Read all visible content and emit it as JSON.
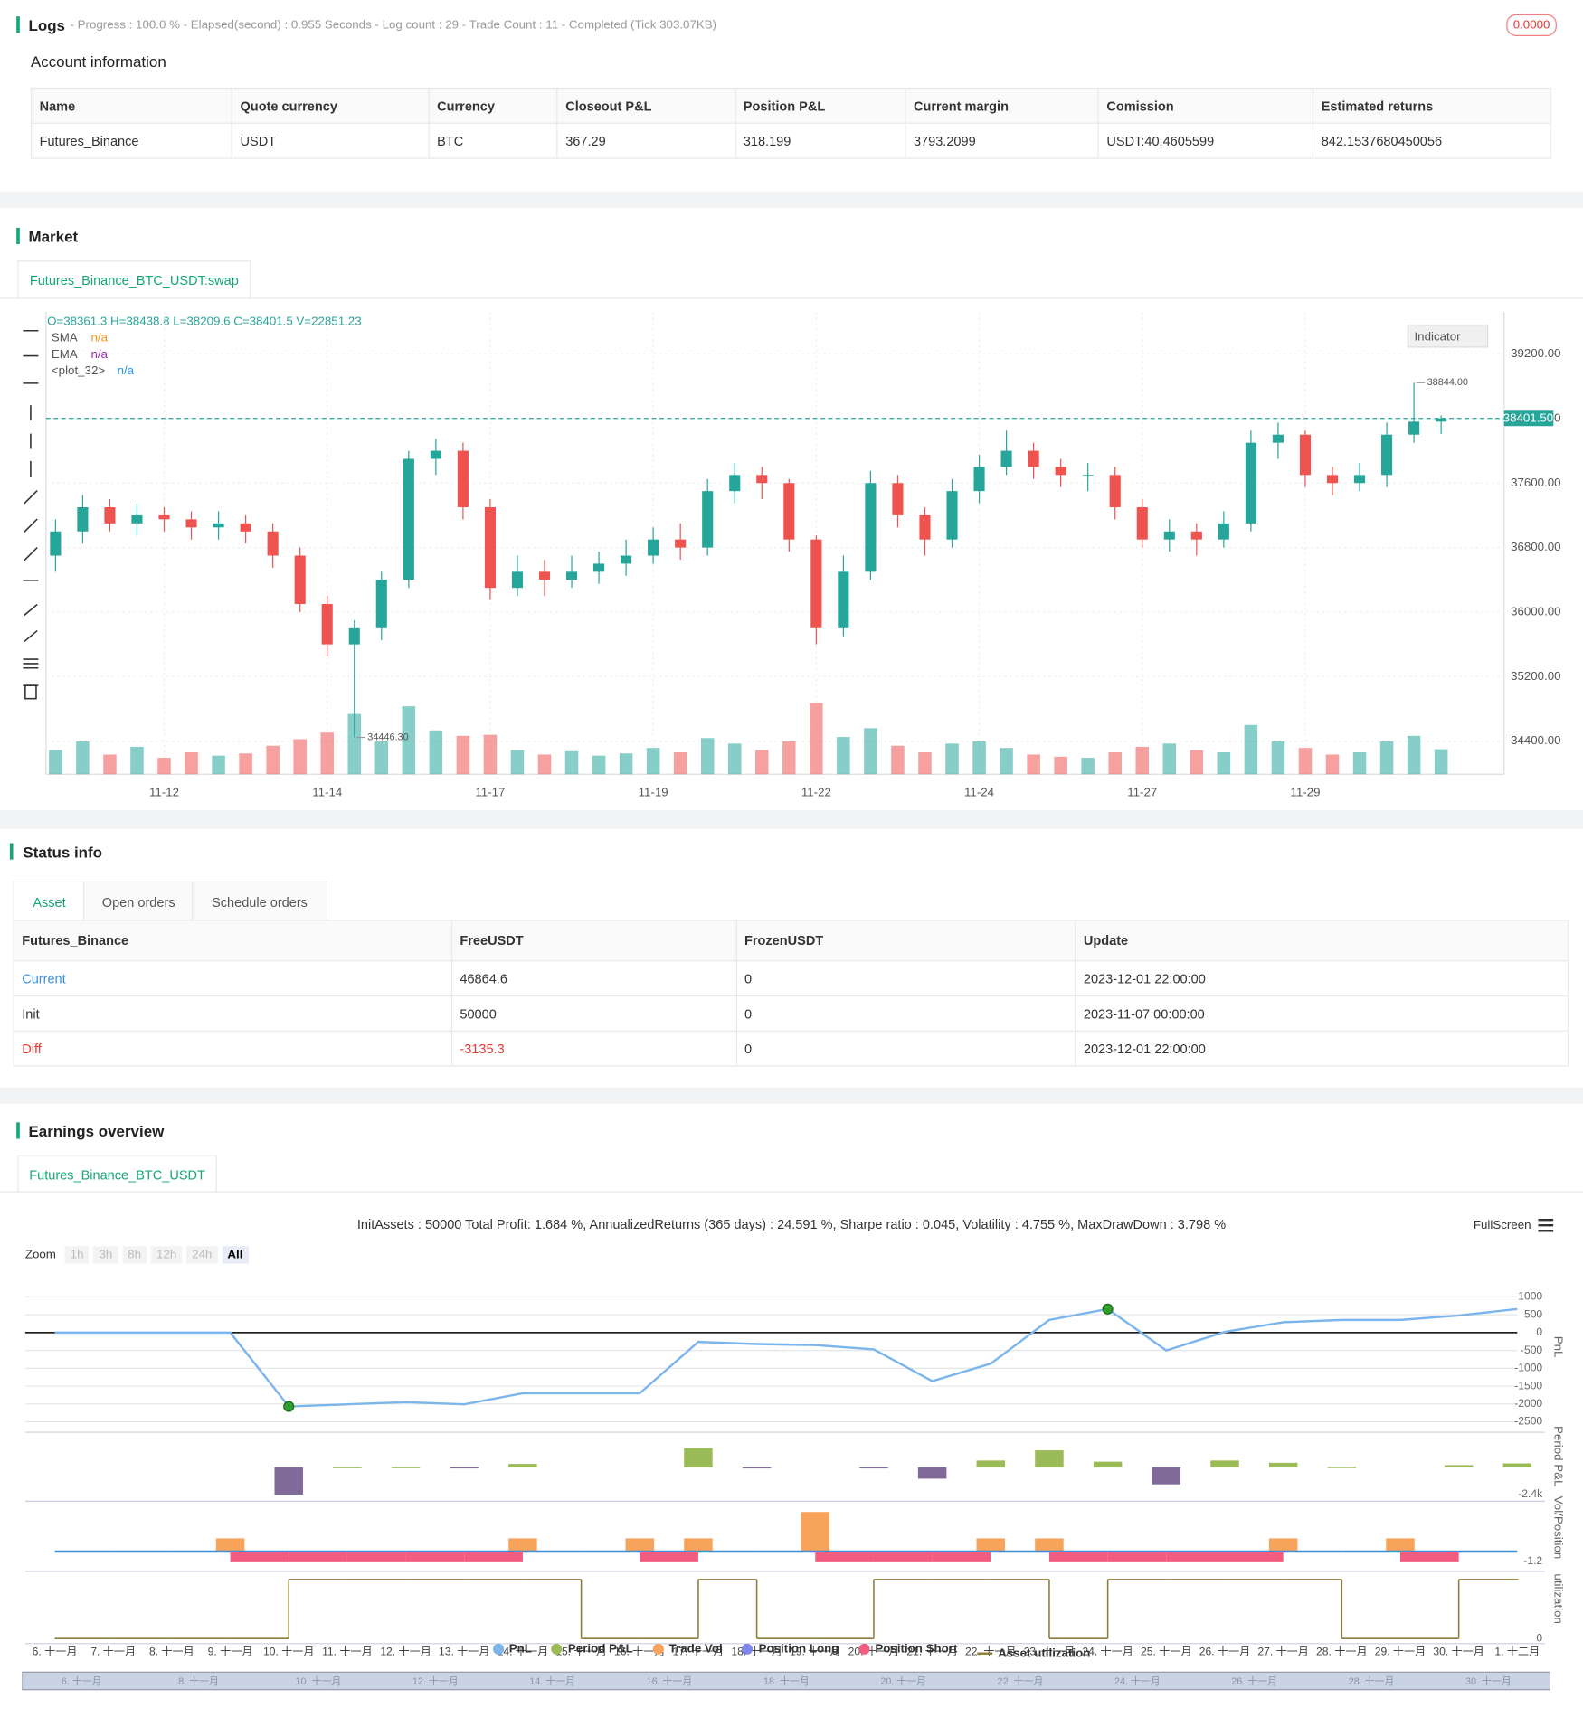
{
  "logs": {
    "title": "Logs",
    "summary": "- Progress : 100.0 % - Elapsed(second) : 0.955  Seconds - Log count : 29 - Trade Count : 11 - Completed (Tick 303.07KB)",
    "badge": "0.0000"
  },
  "account": {
    "title": "Account information",
    "columns": [
      "Name",
      "Quote currency",
      "Currency",
      "Closeout P&L",
      "Position P&L",
      "Current margin",
      "Comission",
      "Estimated returns"
    ],
    "rows": [
      [
        "Futures_Binance",
        "USDT",
        "BTC",
        "367.29",
        "318.199",
        "3793.2099",
        "USDT:40.4605599",
        "842.1537680450056"
      ]
    ]
  },
  "market": {
    "title": "Market",
    "tab": "Futures_Binance_BTC_USDT:swap",
    "indicator_button": "Indicator",
    "ohlc_text": "O=38361.3 H=38438.8 L=38209.6 C=38401.5 V=22851.23",
    "legend": [
      {
        "name": "SMA",
        "value": "n/a",
        "color": "#f7931a"
      },
      {
        "name": "EMA",
        "value": "n/a",
        "color": "#9c27b0"
      },
      {
        "name": "<plot_32>",
        "value": "n/a",
        "color": "#2196f3"
      }
    ]
  },
  "status": {
    "title": "Status info",
    "tabs": [
      "Asset",
      "Open orders",
      "Schedule orders"
    ],
    "columns": [
      "Futures_Binance",
      "FreeUSDT",
      "FrozenUSDT",
      "Update"
    ],
    "rows": [
      [
        "Current",
        "46864.6",
        "0",
        "2023-12-01 22:00:00"
      ],
      [
        "Init",
        "50000",
        "0",
        "2023-11-07 00:00:00"
      ],
      [
        "Diff",
        "-3135.3",
        "0",
        "2023-12-01 22:00:00"
      ]
    ]
  },
  "earnings": {
    "title": "Earnings overview",
    "tab": "Futures_Binance_BTC_USDT",
    "summary": "InitAssets : 50000 Total Profit: 1.684 %, AnnualizedReturns (365 days) : 24.591 %, Sharpe ratio : 0.045, Volatility : 4.755 %, MaxDrawDown : 3.798 %",
    "fullscreen": "FullScreen",
    "zoom_label": "Zoom",
    "zoom_buttons": [
      "1h",
      "3h",
      "8h",
      "12h",
      "24h",
      "All"
    ]
  },
  "chart_data": [
    {
      "type": "candlestick",
      "up_color": "#26a69a",
      "down_color": "#ef5350",
      "categories": [
        null,
        null,
        null,
        null,
        "11-12",
        null,
        null,
        null,
        null,
        null,
        "11-14",
        null,
        null,
        null,
        null,
        null,
        "11-17",
        null,
        null,
        null,
        null,
        null,
        "11-19",
        null,
        null,
        null,
        null,
        null,
        "11-22",
        null,
        null,
        null,
        null,
        null,
        "11-24",
        null,
        null,
        null,
        null,
        null,
        "11-27",
        null,
        null,
        null,
        null,
        null,
        "11-29",
        null,
        null,
        null,
        null,
        null
      ],
      "open": [
        36700,
        37000,
        37300,
        37100,
        37200,
        37150,
        37050,
        37100,
        37000,
        36700,
        36100,
        35600,
        35800,
        36400,
        37900,
        38000,
        37300,
        36300,
        36500,
        36400,
        36500,
        36600,
        36700,
        36900,
        36800,
        37500,
        37700,
        37600,
        36900,
        35800,
        36500,
        37600,
        37200,
        36900,
        37500,
        37800,
        38000,
        37800,
        37700,
        37700,
        37300,
        36900,
        37000,
        36900,
        37100,
        38100,
        38200,
        37700,
        37600,
        37700,
        38200,
        38361.3
      ],
      "high": [
        37150,
        37450,
        37400,
        37350,
        37300,
        37250,
        37250,
        37200,
        37100,
        36800,
        36200,
        35900,
        36500,
        38000,
        38150,
        38100,
        37400,
        36700,
        36650,
        36700,
        36750,
        36900,
        37050,
        37100,
        37650,
        37850,
        37800,
        37650,
        36950,
        36700,
        37750,
        37700,
        37300,
        37650,
        37950,
        38250,
        38100,
        37900,
        37850,
        37800,
        37400,
        37150,
        37100,
        37250,
        38250,
        38350,
        38250,
        37800,
        37850,
        38350,
        38844,
        38438.8
      ],
      "low": [
        36500,
        36850,
        37000,
        36950,
        37000,
        36900,
        36900,
        36850,
        36550,
        36000,
        35450,
        34446.3,
        35650,
        36300,
        37700,
        37150,
        36150,
        36200,
        36200,
        36300,
        36350,
        36450,
        36600,
        36650,
        36700,
        37350,
        37400,
        36750,
        35600,
        35700,
        36400,
        37050,
        36700,
        36800,
        37350,
        37700,
        37650,
        37550,
        37500,
        37150,
        36800,
        36750,
        36700,
        36800,
        37000,
        37900,
        37550,
        37450,
        37500,
        37550,
        38100,
        38209.6
      ],
      "close": [
        37000,
        37300,
        37100,
        37200,
        37150,
        37050,
        37100,
        37000,
        36700,
        36100,
        35600,
        35800,
        36400,
        37900,
        38000,
        37300,
        36300,
        36500,
        36400,
        36500,
        36600,
        36700,
        36900,
        36800,
        37500,
        37700,
        37600,
        36900,
        35800,
        36500,
        37600,
        37200,
        36900,
        37500,
        37800,
        38000,
        37800,
        37700,
        37700,
        37300,
        36900,
        37000,
        36900,
        37100,
        38100,
        38200,
        37700,
        37600,
        37700,
        38200,
        38361.3,
        38401.5
      ],
      "volume": [
        22000,
        30000,
        18000,
        25000,
        15000,
        20000,
        17000,
        19000,
        26000,
        32000,
        38000,
        55000,
        30000,
        62000,
        40000,
        35000,
        36000,
        22000,
        18000,
        21000,
        17000,
        19000,
        24000,
        20000,
        33000,
        28000,
        22000,
        30000,
        65000,
        34000,
        42000,
        26000,
        20000,
        28000,
        30000,
        24000,
        18000,
        16000,
        15000,
        20000,
        25000,
        28000,
        22000,
        20000,
        45000,
        30000,
        24000,
        18000,
        20000,
        30000,
        35000,
        22851.23
      ],
      "ylim": [
        33990,
        39720
      ],
      "vlim": [
        0,
        80000
      ],
      "yticks": [
        {
          "value": 34400,
          "label": "34400.00"
        },
        {
          "value": 35200,
          "label": "35200.00"
        },
        {
          "value": 36000,
          "label": "36000.00"
        },
        {
          "value": 36800,
          "label": "36800.00"
        },
        {
          "value": 37600,
          "label": "37600.00"
        },
        {
          "value": 38400,
          "label": "38400.00"
        },
        {
          "value": 39200,
          "label": "39200.00"
        }
      ],
      "last_price": {
        "value": 38401.5,
        "label": "38401.50"
      },
      "max_label": {
        "value": 38844,
        "label": "38844.00"
      },
      "min_label": {
        "value": 34446.3,
        "label": "34446.30"
      },
      "grid": true
    },
    {
      "type": "line",
      "y_label": "PnL",
      "categories": [
        "6. 十一月",
        "7. 十一月",
        "8. 十一月",
        "9. 十一月",
        "10. 十一月",
        "11. 十一月",
        "12. 十一月",
        "13. 十一月",
        "14. 十一月",
        "15. 十一月",
        "16. 十一月",
        "17. 十一月",
        "18. 十一月",
        "19. 十一月",
        "20. 十一月",
        "21. 十一月",
        "22. 十一月",
        "23. 十一月",
        "24. 十一月",
        "25. 十一月",
        "26. 十一月",
        "27. 十一月",
        "28. 十一月",
        "29. 十一月",
        "30. 十一月",
        "1. 十二月"
      ],
      "series": [
        {
          "name": "PnL",
          "color": "#7cb5ec",
          "values": [
            0,
            0,
            0,
            0,
            -2070,
            -2010,
            -1950,
            -2010,
            -1700,
            -1700,
            -1700,
            -260,
            -320,
            -350,
            -470,
            -1360,
            -870,
            355,
            660,
            -500,
            20,
            290,
            355,
            355,
            480,
            660
          ]
        }
      ],
      "ylim": [
        -2700,
        1350
      ],
      "yticks": [
        1000,
        500,
        0,
        -500,
        -1000,
        -1500,
        -2000,
        -2500
      ],
      "grid": true
    },
    {
      "type": "bar",
      "y_label": "Period P&L",
      "series": [
        {
          "name": "Period P&L",
          "color": "#9bbb59",
          "negative_color": "#7f6a9a",
          "values": [
            null,
            null,
            null,
            null,
            -2400,
            20,
            20,
            -20,
            300,
            null,
            null,
            1700,
            -20,
            null,
            -30,
            -1000,
            600,
            1500,
            500,
            -1500,
            600,
            400,
            30,
            null,
            200,
            350
          ]
        }
      ],
      "ylim": [
        -2700,
        2900
      ],
      "yticks": [
        {
          "value": -2400,
          "label": "-2.4k"
        }
      ]
    },
    {
      "type": "bar",
      "y_label": "Vol/Position",
      "series": [
        {
          "name": "Trade Vol",
          "color": "#f7a35c",
          "values": [
            null,
            null,
            null,
            1.6,
            null,
            null,
            null,
            null,
            1.6,
            null,
            1.6,
            1.6,
            null,
            4.8,
            null,
            null,
            1.6,
            1.6,
            null,
            null,
            null,
            1.6,
            null,
            1.6,
            null,
            null
          ]
        },
        {
          "name": "Position Long",
          "color": "#8085e9",
          "values": [
            0,
            0,
            0,
            0,
            0,
            0,
            0,
            0,
            0,
            0,
            0,
            0,
            0,
            0,
            0,
            0,
            0,
            0,
            0,
            0,
            0,
            0,
            0,
            0,
            0,
            0
          ]
        },
        {
          "name": "Position Short",
          "color": "#f15c80",
          "values": [
            0,
            0,
            0,
            -1.3,
            -1.3,
            -1.3,
            -1.3,
            -1.3,
            0,
            0,
            -1.3,
            0,
            0,
            -1.3,
            -1.3,
            -1.3,
            0,
            -1.3,
            -1.3,
            -1.3,
            -1.3,
            0,
            0,
            -1.3,
            0,
            0
          ]
        }
      ],
      "ylim": [
        -2,
        5.7
      ],
      "yticks": [
        -1.2
      ]
    },
    {
      "type": "step",
      "y_label": "utilization",
      "series": [
        {
          "name": "Asset utilization",
          "color": "#8d7d3a",
          "values": [
            0,
            0,
            0,
            0,
            0.97,
            0.97,
            0.97,
            0.97,
            0.97,
            0,
            0,
            0.97,
            0,
            0,
            0.97,
            0.97,
            0.97,
            0,
            0.97,
            0.97,
            0.97,
            0.97,
            0,
            0,
            0.97,
            0.97
          ]
        }
      ],
      "ylim": [
        -0.03,
        1.05
      ],
      "yticks": [
        0
      ]
    }
  ]
}
